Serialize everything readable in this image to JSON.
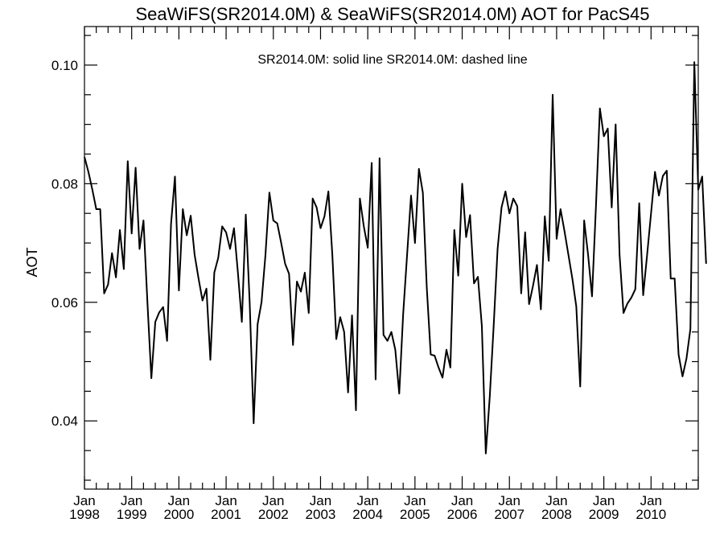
{
  "chart_data": {
    "type": "line",
    "title": "SeaWiFS(SR2014.0M) & SeaWiFS(SR2014.0M)  AOT for PacS45",
    "subtitle": "SR2014.0M: solid line   SR2014.0M: dashed line",
    "xlabel": "",
    "ylabel": "AOT",
    "ylim": [
      0.0285,
      0.1065
    ],
    "xlim": [
      "1998-01",
      "2011-01"
    ],
    "y_ticks": [
      0.04,
      0.06,
      0.08,
      0.1
    ],
    "y_tick_labels": [
      "0.04",
      "0.06",
      "0.08",
      "0.10"
    ],
    "x_tick_labels": [
      {
        "month": "Jan",
        "year": "1998"
      },
      {
        "month": "Jan",
        "year": "1999"
      },
      {
        "month": "Jan",
        "year": "2000"
      },
      {
        "month": "Jan",
        "year": "2001"
      },
      {
        "month": "Jan",
        "year": "2002"
      },
      {
        "month": "Jan",
        "year": "2003"
      },
      {
        "month": "Jan",
        "year": "2004"
      },
      {
        "month": "Jan",
        "year": "2005"
      },
      {
        "month": "Jan",
        "year": "2006"
      },
      {
        "month": "Jan",
        "year": "2007"
      },
      {
        "month": "Jan",
        "year": "2008"
      },
      {
        "month": "Jan",
        "year": "2009"
      },
      {
        "month": "Jan",
        "year": "2010"
      }
    ],
    "grid": false,
    "series": [
      {
        "name": "SR2014.0M",
        "style": "solid",
        "color": "#000000",
        "x_start": "1998-01",
        "x_step": "1 month",
        "values": [
          0.0845,
          0.082,
          0.079,
          0.0757,
          0.0757,
          0.0615,
          0.063,
          0.0683,
          0.0642,
          0.0722,
          0.0656,
          0.0838,
          0.0716,
          0.0827,
          0.069,
          0.0738,
          0.06,
          0.0472,
          0.0567,
          0.0583,
          0.0592,
          0.0535,
          0.0732,
          0.0812,
          0.062,
          0.0757,
          0.0713,
          0.0746,
          0.068,
          0.064,
          0.0603,
          0.0623,
          0.0503,
          0.065,
          0.0675,
          0.0728,
          0.0718,
          0.069,
          0.0725,
          0.065,
          0.0567,
          0.0748,
          0.0598,
          0.0396,
          0.0563,
          0.06,
          0.068,
          0.0785,
          0.0738,
          0.0733,
          0.07,
          0.0665,
          0.0648,
          0.0528,
          0.0635,
          0.0618,
          0.065,
          0.0582,
          0.0775,
          0.076,
          0.0725,
          0.0745,
          0.0787,
          0.068,
          0.0538,
          0.0575,
          0.055,
          0.0448,
          0.0578,
          0.0418,
          0.0775,
          0.0728,
          0.0692,
          0.0835,
          0.047,
          0.0843,
          0.0545,
          0.0535,
          0.055,
          0.052,
          0.0446,
          0.058,
          0.068,
          0.078,
          0.07,
          0.0825,
          0.0785,
          0.0625,
          0.0512,
          0.051,
          0.049,
          0.0473,
          0.052,
          0.049,
          0.0722,
          0.0645,
          0.08,
          0.071,
          0.0747,
          0.0632,
          0.0643,
          0.056,
          0.0345,
          0.044,
          0.056,
          0.069,
          0.076,
          0.0787,
          0.075,
          0.0775,
          0.0762,
          0.0615,
          0.0718,
          0.0597,
          0.0628,
          0.0663,
          0.0588,
          0.0745,
          0.067,
          0.095,
          0.0707,
          0.0757,
          0.072,
          0.068,
          0.064,
          0.0593,
          0.0458,
          0.0738,
          0.068,
          0.061,
          0.0762,
          0.0927,
          0.088,
          0.0893,
          0.076,
          0.09,
          0.068,
          0.0582,
          0.0598,
          0.0608,
          0.0622,
          0.0767,
          0.0612,
          0.068,
          0.075,
          0.082,
          0.078,
          0.0813,
          0.0822,
          0.064,
          0.064,
          0.0512,
          0.0475,
          0.0505,
          0.0555,
          0.1005,
          0.079,
          0.0812,
          0.0665
        ]
      }
    ]
  }
}
